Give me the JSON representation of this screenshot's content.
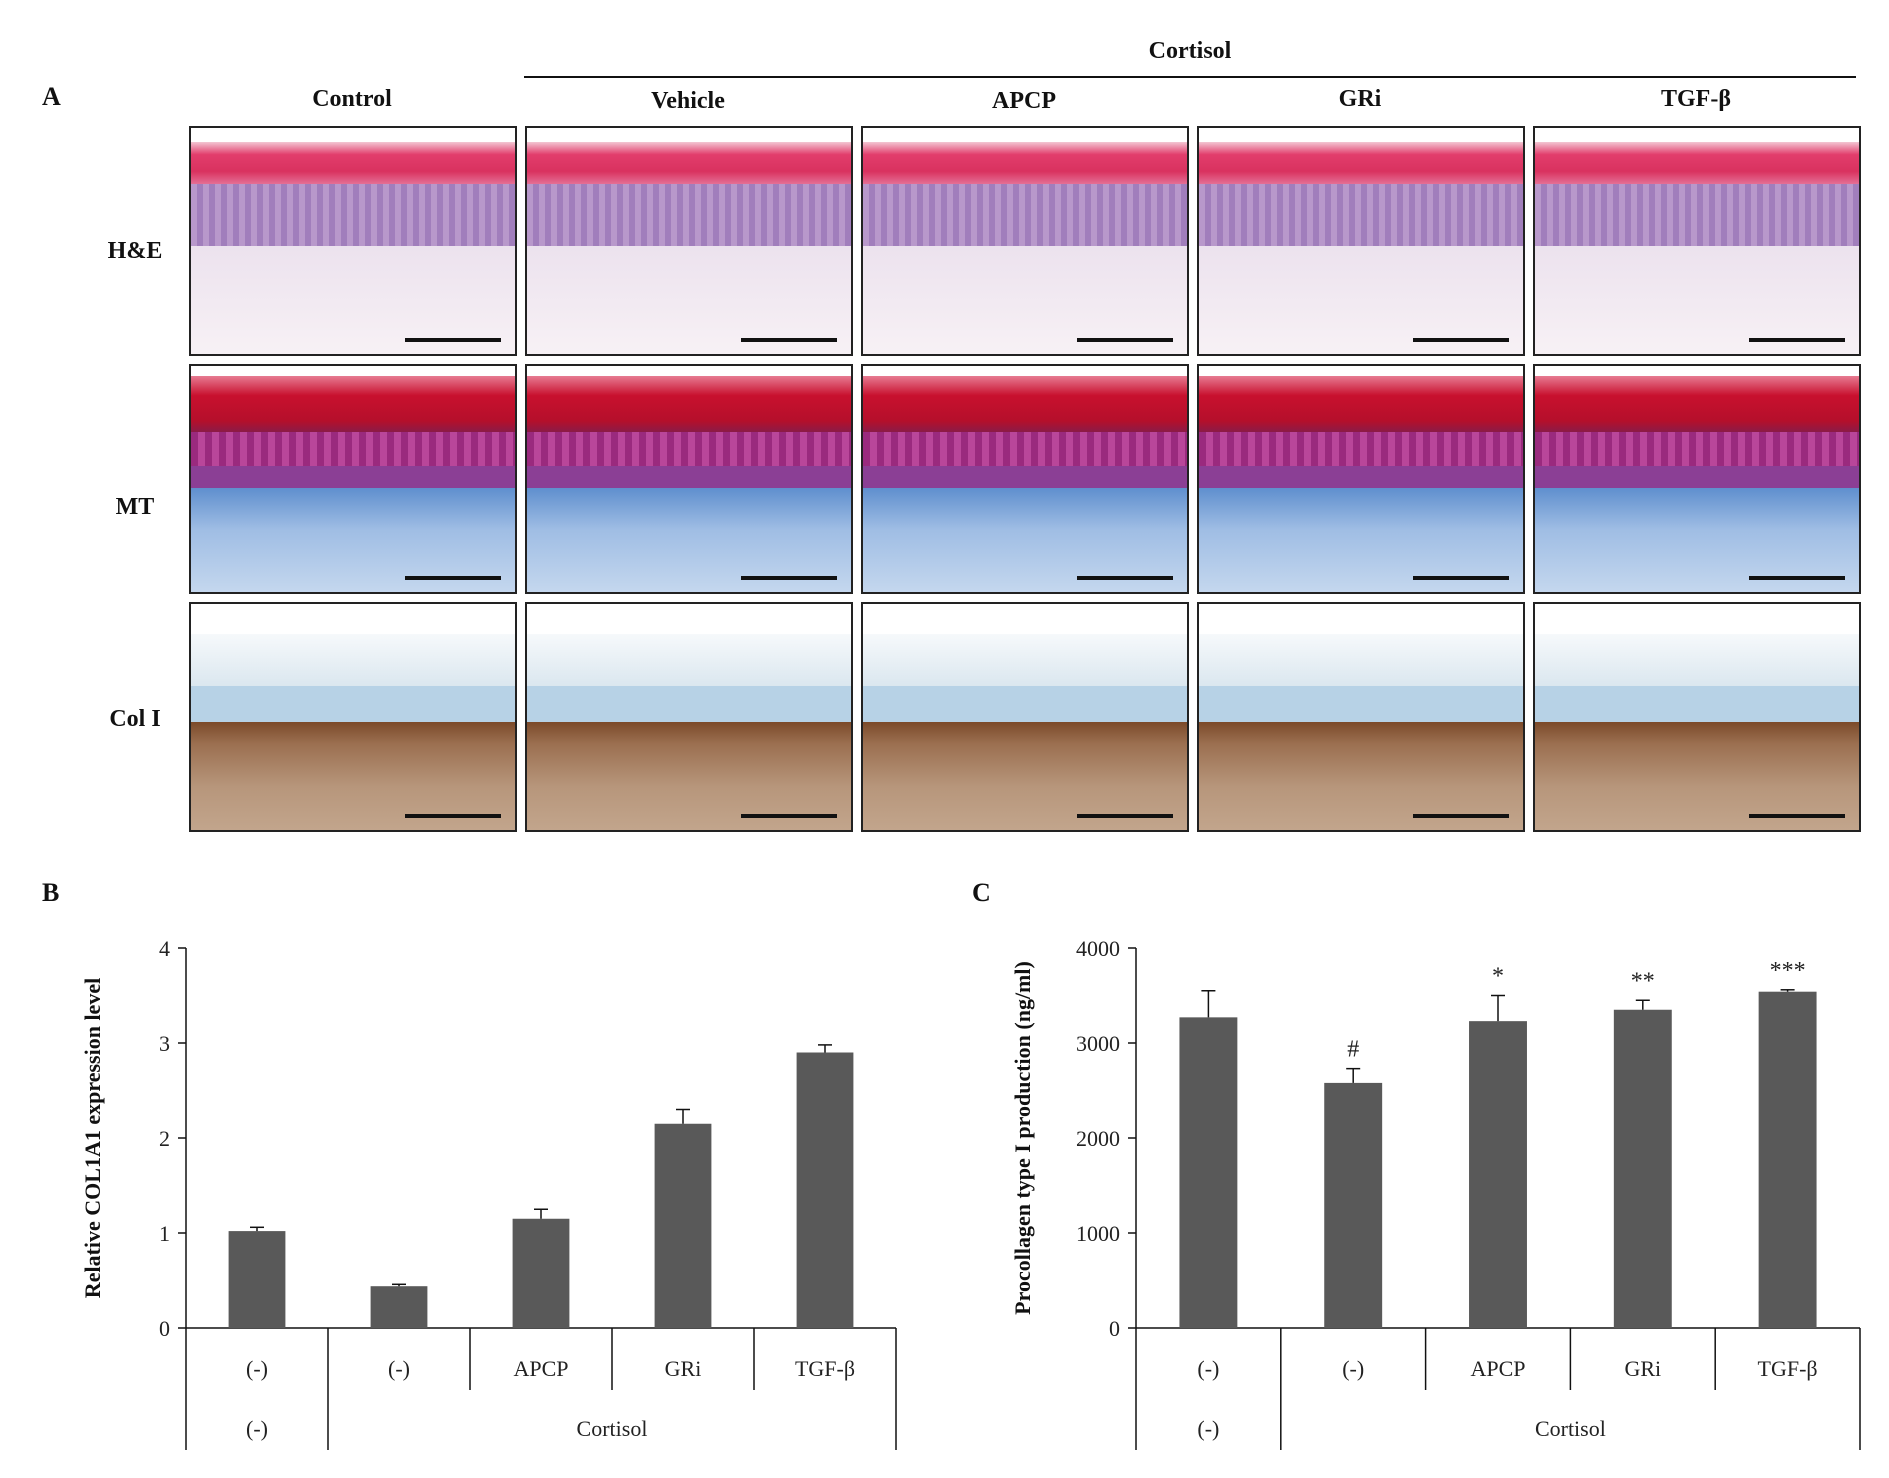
{
  "panel_letters": {
    "a": "A",
    "b": "B",
    "c": "C"
  },
  "panel_a": {
    "group_label": "Cortisol",
    "columns": [
      "Control",
      "Vehicle",
      "APCP",
      "GRi",
      "TGF-β"
    ],
    "rows": [
      "H&E",
      "MT",
      "Col I"
    ]
  },
  "colors": {
    "bar": "#595959",
    "axis": "#111111"
  },
  "chart_data": [
    {
      "type": "bar",
      "title": "",
      "ylabel": "Relative COL1A1 expression level",
      "xlabel": "",
      "ylim": [
        0,
        4
      ],
      "yticks": [
        0,
        1,
        2,
        3,
        4
      ],
      "categories": [
        "(-)",
        "(-)",
        "APCP",
        "GRi",
        "TGF-β"
      ],
      "second_level": [
        {
          "label": "(-)",
          "span": 1
        },
        {
          "label": "Cortisol",
          "span": 4
        }
      ],
      "values": [
        1.02,
        0.44,
        1.15,
        2.15,
        2.9
      ],
      "errors": [
        0.04,
        0.02,
        0.1,
        0.15,
        0.08
      ],
      "annotations": [
        "",
        "",
        "",
        "",
        ""
      ],
      "grid": false
    },
    {
      "type": "bar",
      "title": "",
      "ylabel": "Procollagen type I production (ng/ml)",
      "xlabel": "",
      "ylim": [
        0,
        4000
      ],
      "yticks": [
        0,
        1000,
        2000,
        3000,
        4000
      ],
      "categories": [
        "(-)",
        "(-)",
        "APCP",
        "GRi",
        "TGF-β"
      ],
      "second_level": [
        {
          "label": "(-)",
          "span": 1
        },
        {
          "label": "Cortisol",
          "span": 4
        }
      ],
      "values": [
        3270,
        2580,
        3230,
        3350,
        3540
      ],
      "errors": [
        280,
        150,
        270,
        100,
        20
      ],
      "annotations": [
        "",
        "#",
        "*",
        "**",
        "***"
      ],
      "grid": false
    }
  ]
}
